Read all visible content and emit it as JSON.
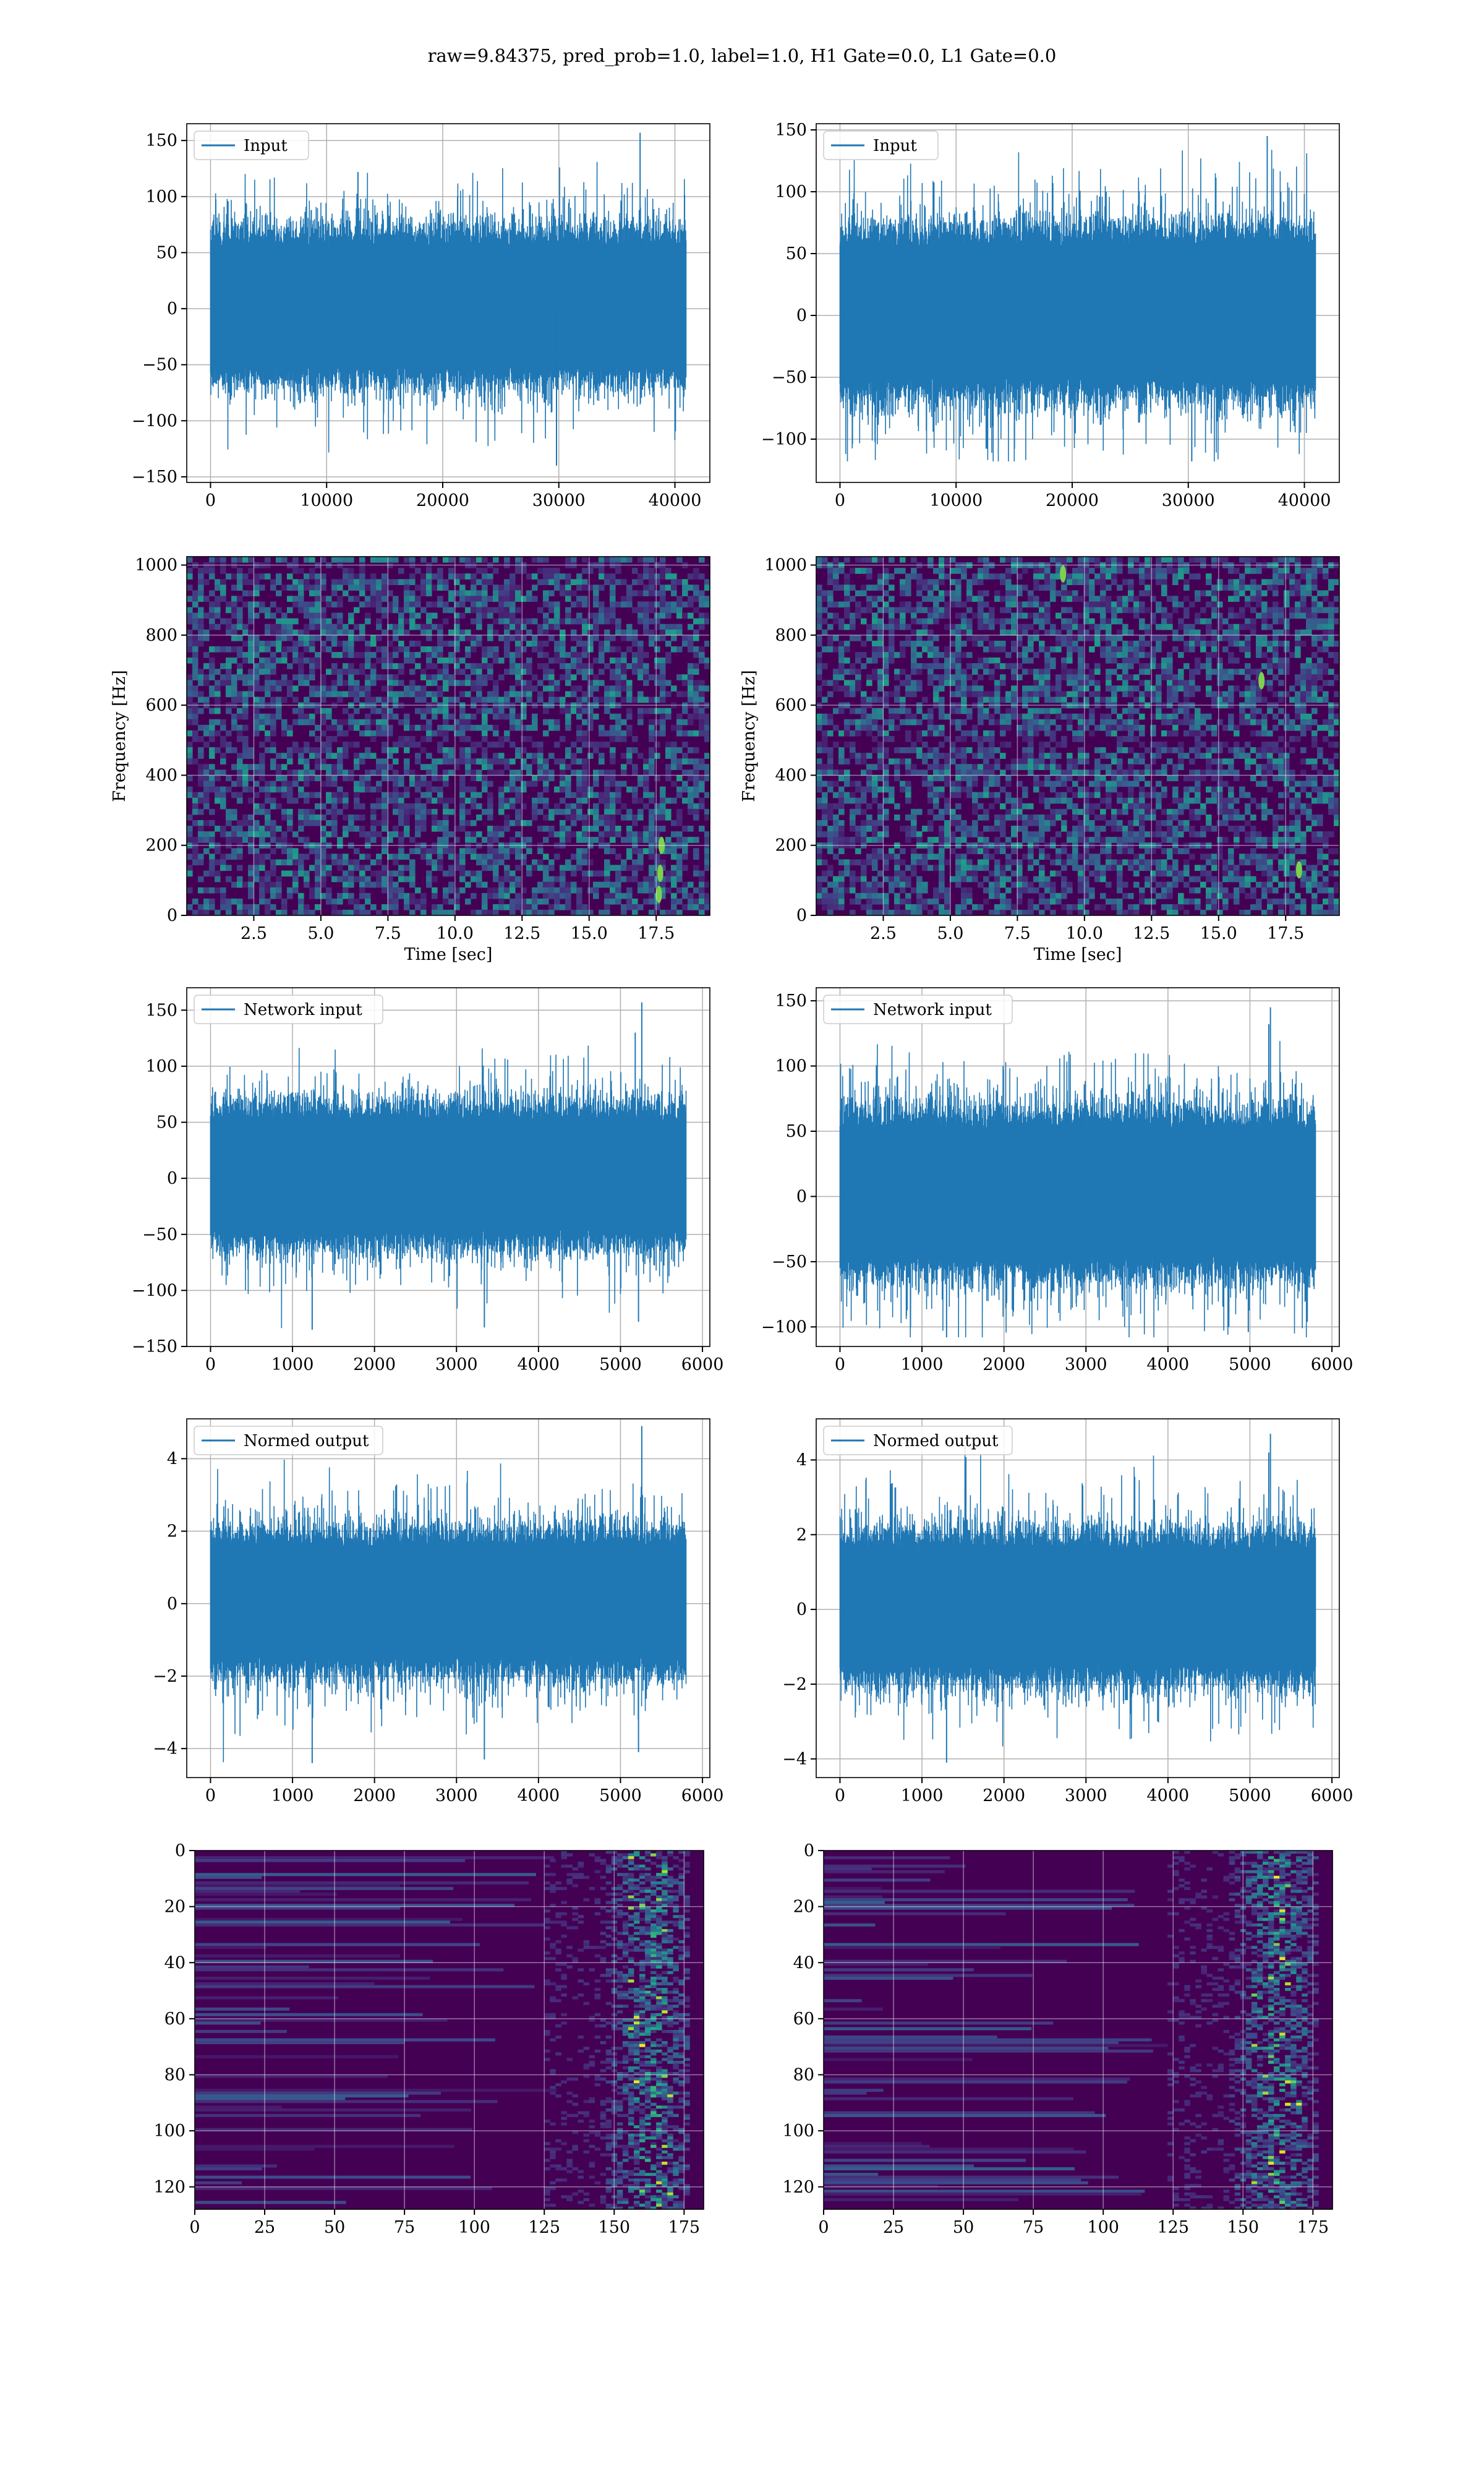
{
  "figure": {
    "suptitle": "raw=9.84375, pred_prob=1.0, label=1.0, H1 Gate=0.0, L1 Gate=0.0"
  },
  "colors": {
    "series": "#1f77b4",
    "grid": "#b0b0b0",
    "viridis": [
      "#440154",
      "#482878",
      "#3e4989",
      "#31688e",
      "#26828e",
      "#1f9e89",
      "#35b779",
      "#6ece58",
      "#b5de2b",
      "#fde725"
    ]
  },
  "chart_data": [
    {
      "id": "input-h1",
      "type": "line",
      "legend": "Input",
      "legend_loc": "upper-left",
      "grid": true,
      "n_samples": 40960,
      "xlim": [
        -2048,
        43008
      ],
      "ylim": [
        -155,
        165
      ],
      "xticks": [
        0,
        10000,
        20000,
        30000,
        40000
      ],
      "xtick_labels": [
        "0",
        "10000",
        "20000",
        "30000",
        "40000"
      ],
      "yticks": [
        -150,
        -100,
        -50,
        0,
        50,
        100,
        150
      ],
      "ytick_labels": [
        "−150",
        "−100",
        "−50",
        "0",
        "50",
        "100",
        "150"
      ],
      "envelope": {
        "typical_min": -55,
        "typical_max": 60,
        "min": -140,
        "max": 157
      },
      "spikes": [
        {
          "x": 37000,
          "y": 157
        },
        {
          "x": 29800,
          "y": -140
        },
        {
          "x": 12700,
          "y": 122
        }
      ]
    },
    {
      "id": "input-l1",
      "type": "line",
      "legend": "Input",
      "legend_loc": "upper-left",
      "grid": true,
      "n_samples": 40960,
      "xlim": [
        -2048,
        43008
      ],
      "ylim": [
        -135,
        155
      ],
      "xticks": [
        0,
        10000,
        20000,
        30000,
        40000
      ],
      "xtick_labels": [
        "0",
        "10000",
        "20000",
        "30000",
        "40000"
      ],
      "yticks": [
        -100,
        -50,
        0,
        50,
        100,
        150
      ],
      "ytick_labels": [
        "−100",
        "−50",
        "0",
        "50",
        "100",
        "150"
      ],
      "envelope": {
        "typical_min": -55,
        "typical_max": 60,
        "min": -118,
        "max": 145
      },
      "spikes": [
        {
          "x": 36800,
          "y": 145
        },
        {
          "x": 30300,
          "y": -118
        }
      ]
    },
    {
      "id": "spectrogram-h1",
      "type": "heatmap",
      "grid": true,
      "xlabel": "Time [sec]",
      "ylabel": "Frequency [Hz]",
      "xlim": [
        0,
        19.5
      ],
      "ylim": [
        0,
        1024
      ],
      "xticks": [
        2.5,
        5.0,
        7.5,
        10.0,
        12.5,
        15.0,
        17.5
      ],
      "xtick_labels": [
        "2.5",
        "5.0",
        "7.5",
        "10.0",
        "12.5",
        "15.0",
        "17.5"
      ],
      "yticks": [
        0,
        200,
        400,
        600,
        800,
        1000
      ],
      "ytick_labels": [
        "0",
        "200",
        "400",
        "600",
        "800",
        "1000"
      ],
      "dark_bands_hz": [
        490,
        505,
        990,
        1000
      ],
      "hotspots": [
        {
          "t": 17.6,
          "f": 60
        },
        {
          "t": 17.7,
          "f": 200
        },
        {
          "t": 17.65,
          "f": 120
        }
      ]
    },
    {
      "id": "spectrogram-l1",
      "type": "heatmap",
      "grid": true,
      "xlabel": "Time [sec]",
      "ylabel": "Frequency [Hz]",
      "xlim": [
        0,
        19.5
      ],
      "ylim": [
        0,
        1024
      ],
      "xticks": [
        2.5,
        5.0,
        7.5,
        10.0,
        12.5,
        15.0,
        17.5
      ],
      "xtick_labels": [
        "2.5",
        "5.0",
        "7.5",
        "10.0",
        "12.5",
        "15.0",
        "17.5"
      ],
      "yticks": [
        0,
        200,
        400,
        600,
        800,
        1000
      ],
      "ytick_labels": [
        "0",
        "200",
        "400",
        "600",
        "800",
        "1000"
      ],
      "dark_bands_hz": [
        490,
        505
      ],
      "hotspots": [
        {
          "t": 16.6,
          "f": 670
        },
        {
          "t": 9.2,
          "f": 975
        },
        {
          "t": 18.0,
          "f": 130
        }
      ]
    },
    {
      "id": "network-input-h1",
      "type": "line",
      "legend": "Network input",
      "legend_loc": "upper-left",
      "grid": true,
      "n_samples": 5800,
      "xlim": [
        -290,
        6090
      ],
      "ylim": [
        -150,
        170
      ],
      "xticks": [
        0,
        1000,
        2000,
        3000,
        4000,
        5000,
        6000
      ],
      "xtick_labels": [
        "0",
        "1000",
        "2000",
        "3000",
        "4000",
        "5000",
        "6000"
      ],
      "yticks": [
        -150,
        -100,
        -50,
        0,
        50,
        100,
        150
      ],
      "ytick_labels": [
        "−150",
        "−100",
        "−50",
        "0",
        "50",
        "100",
        "150"
      ],
      "envelope": {
        "typical_min": -50,
        "typical_max": 55,
        "min": -135,
        "max": 157
      },
      "spikes": [
        {
          "x": 5260,
          "y": 157
        },
        {
          "x": 5180,
          "y": 130
        },
        {
          "x": 1240,
          "y": -135
        },
        {
          "x": 3340,
          "y": -133
        },
        {
          "x": 5220,
          "y": -128
        }
      ]
    },
    {
      "id": "network-input-l1",
      "type": "line",
      "legend": "Network input",
      "legend_loc": "upper-left",
      "grid": true,
      "n_samples": 5800,
      "xlim": [
        -290,
        6090
      ],
      "ylim": [
        -115,
        160
      ],
      "xticks": [
        0,
        1000,
        2000,
        3000,
        4000,
        5000,
        6000
      ],
      "xtick_labels": [
        "0",
        "1000",
        "2000",
        "3000",
        "4000",
        "5000",
        "6000"
      ],
      "yticks": [
        -100,
        -50,
        0,
        50,
        100,
        150
      ],
      "ytick_labels": [
        "−100",
        "−50",
        "0",
        "50",
        "100",
        "150"
      ],
      "envelope": {
        "typical_min": -50,
        "typical_max": 55,
        "min": -108,
        "max": 145
      },
      "spikes": [
        {
          "x": 5250,
          "y": 145
        },
        {
          "x": 5230,
          "y": 132
        },
        {
          "x": 1300,
          "y": -108
        },
        {
          "x": 4980,
          "y": -104
        }
      ]
    },
    {
      "id": "normed-output-h1",
      "type": "line",
      "legend": "Normed output",
      "legend_loc": "upper-left",
      "grid": true,
      "n_samples": 5800,
      "xlim": [
        -290,
        6090
      ],
      "ylim": [
        -4.8,
        5.1
      ],
      "xticks": [
        0,
        1000,
        2000,
        3000,
        4000,
        5000,
        6000
      ],
      "xtick_labels": [
        "0",
        "1000",
        "2000",
        "3000",
        "4000",
        "5000",
        "6000"
      ],
      "yticks": [
        -4,
        -2,
        0,
        2,
        4
      ],
      "ytick_labels": [
        "−4",
        "−2",
        "0",
        "2",
        "4"
      ],
      "envelope": {
        "typical_min": -1.6,
        "typical_max": 1.7,
        "min": -4.4,
        "max": 4.9
      },
      "spikes": [
        {
          "x": 5260,
          "y": 4.9
        },
        {
          "x": 1240,
          "y": -4.4
        },
        {
          "x": 3340,
          "y": -4.3
        },
        {
          "x": 5220,
          "y": -4.1
        }
      ]
    },
    {
      "id": "normed-output-l1",
      "type": "line",
      "legend": "Normed output",
      "legend_loc": "upper-left",
      "grid": true,
      "n_samples": 5800,
      "xlim": [
        -290,
        6090
      ],
      "ylim": [
        -4.5,
        5.1
      ],
      "xticks": [
        0,
        1000,
        2000,
        3000,
        4000,
        5000,
        6000
      ],
      "xtick_labels": [
        "0",
        "1000",
        "2000",
        "3000",
        "4000",
        "5000",
        "6000"
      ],
      "yticks": [
        -4,
        -2,
        0,
        2,
        4
      ],
      "ytick_labels": [
        "−4",
        "−2",
        "0",
        "2",
        "4"
      ],
      "envelope": {
        "typical_min": -1.6,
        "typical_max": 1.7,
        "min": -4.1,
        "max": 4.7
      },
      "spikes": [
        {
          "x": 5250,
          "y": 4.7
        },
        {
          "x": 5230,
          "y": 4.2
        },
        {
          "x": 1300,
          "y": -4.1
        }
      ]
    },
    {
      "id": "feature-map-h1",
      "type": "heatmap",
      "grid": true,
      "y_inverted": true,
      "xlim": [
        0,
        182
      ],
      "ylim": [
        128,
        0
      ],
      "xticks": [
        0,
        25,
        50,
        75,
        100,
        125,
        150,
        175
      ],
      "xtick_labels": [
        "0",
        "25",
        "50",
        "75",
        "100",
        "125",
        "150",
        "175"
      ],
      "yticks": [
        0,
        20,
        40,
        60,
        80,
        100,
        120
      ],
      "ytick_labels": [
        "0",
        "20",
        "40",
        "60",
        "80",
        "100",
        "120"
      ],
      "active_columns": [
        150,
        175
      ],
      "peak_column": 162
    },
    {
      "id": "feature-map-l1",
      "type": "heatmap",
      "grid": true,
      "y_inverted": true,
      "xlim": [
        0,
        182
      ],
      "ylim": [
        128,
        0
      ],
      "xticks": [
        0,
        25,
        50,
        75,
        100,
        125,
        150,
        175
      ],
      "xtick_labels": [
        "0",
        "25",
        "50",
        "75",
        "100",
        "125",
        "150",
        "175"
      ],
      "yticks": [
        0,
        20,
        40,
        60,
        80,
        100,
        120
      ],
      "ytick_labels": [
        "0",
        "20",
        "40",
        "60",
        "80",
        "100",
        "120"
      ],
      "active_columns": [
        148,
        175
      ],
      "peak_column": 161
    }
  ]
}
